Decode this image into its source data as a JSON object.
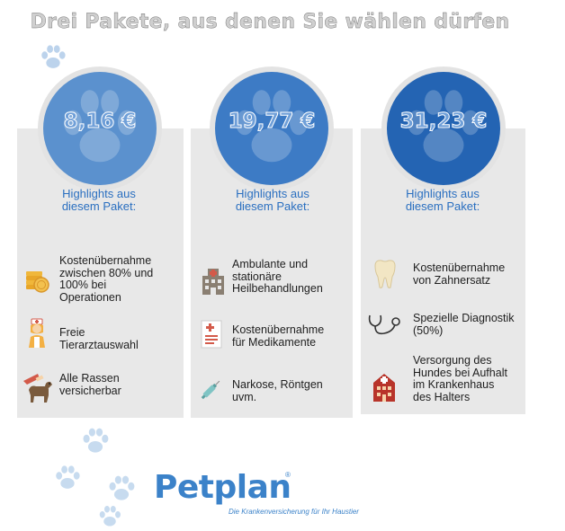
{
  "title": "Drei Pakete, aus denen Sie wählen dürfen",
  "packages": [
    {
      "price": "8,16 €",
      "highlights_label": [
        "Highlights aus",
        "diesem Paket:"
      ],
      "items": [
        {
          "icon": "coins-icon",
          "lines": [
            "Kostenübernahme",
            "zwischen  80% und",
            "100% bei",
            "Operationen"
          ]
        },
        {
          "icon": "nurse-icon",
          "lines": [
            "Freie",
            "Tierarztauswahl"
          ]
        },
        {
          "icon": "dog-with-vet-icon",
          "lines": [
            "Alle Rassen",
            "versicherbar"
          ]
        }
      ]
    },
    {
      "price": "19,77 €",
      "highlights_label": [
        "Highlights aus",
        "diesem Paket:"
      ],
      "items": [
        {
          "icon": "hospital-building-icon",
          "lines": [
            "Ambulante und",
            "stationäre",
            "Heilbehandlungen"
          ]
        },
        {
          "icon": "prescription-icon",
          "lines": [
            "Kostenübernahme",
            "für Medikamente"
          ]
        },
        {
          "icon": "syringe-icon",
          "lines": [
            "Narkose, Röntgen",
            "uvm."
          ]
        }
      ]
    },
    {
      "price": "31,23 €",
      "highlights_label": [
        "Highlights aus",
        "diesem Paket:"
      ],
      "items": [
        {
          "icon": "tooth-icon",
          "lines": [
            "Kostenübernahme",
            "von Zahnersatz"
          ]
        },
        {
          "icon": "stethoscope-icon",
          "lines": [
            "Spezielle Diagnostik",
            "(50%)"
          ]
        },
        {
          "icon": "house-icon",
          "lines": [
            "Versorgung des",
            "Hundes bei Aufhalt",
            "im Krankenhaus",
            "des Halters"
          ]
        }
      ]
    }
  ],
  "logo": {
    "name": "Petplan",
    "registered": "®",
    "tagline": "Die Krankenversicherung für Ihr Haustier"
  },
  "colors": {
    "circle_light": "#5b91ce",
    "circle_mid": "#3d7bc5",
    "circle_dark": "#2464b3",
    "card_bg": "#e8e8e8",
    "highlight_text": "#2a6fc0",
    "brand": "#3b82c9"
  }
}
